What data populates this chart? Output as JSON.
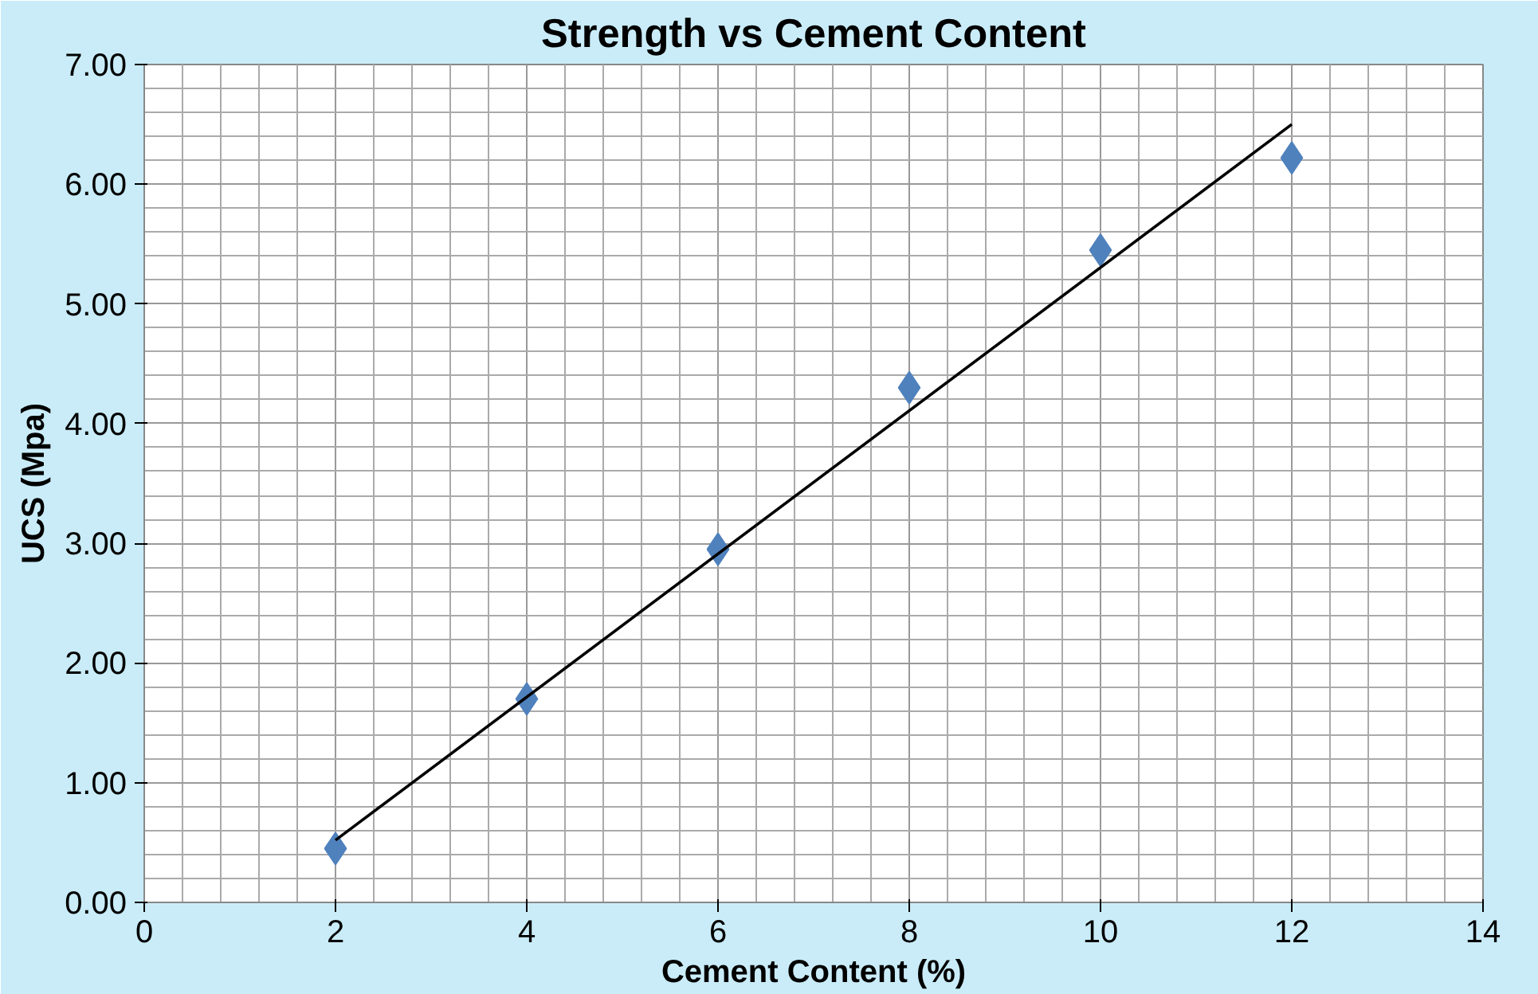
{
  "chart_data": {
    "type": "scatter",
    "title": "Strength vs Cement Content",
    "xlabel": "Cement Content (%)",
    "ylabel": "UCS (Mpa)",
    "x": [
      2,
      4,
      6,
      8,
      10,
      12
    ],
    "series": [
      {
        "color": "#4f81bd",
        "values": [
          0.45,
          1.7,
          2.95,
          4.3,
          5.45,
          6.22
        ],
        "marker": "diamond"
      },
      {
        "type": "line",
        "color": "#000000",
        "x": [
          2,
          12
        ],
        "values": [
          0.52,
          6.5
        ],
        "marker": "none"
      }
    ],
    "xlim": [
      0,
      14
    ],
    "xticks": [
      0,
      2,
      4,
      6,
      8,
      10,
      12,
      14
    ],
    "ylim": [
      0,
      7
    ],
    "yticks": [
      {
        "value": 0,
        "label": "0.00"
      },
      {
        "value": 1,
        "label": "1.00"
      },
      {
        "value": 2,
        "label": "2.00"
      },
      {
        "value": 3,
        "label": "3.00"
      },
      {
        "value": 4,
        "label": "4.00"
      },
      {
        "value": 5,
        "label": "5.00"
      },
      {
        "value": 6,
        "label": "6.00"
      },
      {
        "value": 7,
        "label": "7.00"
      }
    ],
    "grid": true
  }
}
